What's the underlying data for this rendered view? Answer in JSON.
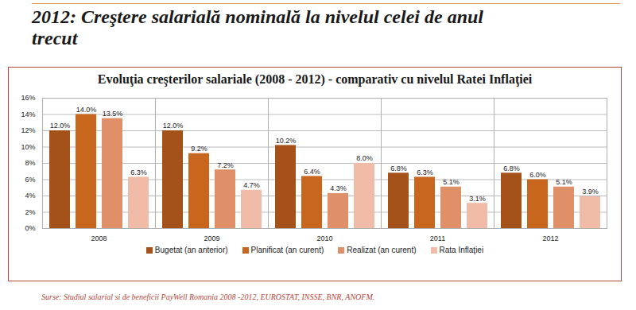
{
  "heading": "2012: Creştere salarială nominală la nivelul celei de anul trecut",
  "source": "Surse: Studiul salarial si de beneficii PayWell Romania 2008 -2012, EUROSTAT, INSSE, BNR, ANOFM.",
  "chart_data": {
    "type": "bar",
    "title": "Evoluţia creşterilor salariale (2008 - 2012) - comparativ cu nivelul Ratei Inflaţiei",
    "categories": [
      "2008",
      "2009",
      "2010",
      "2011",
      "2012"
    ],
    "series": [
      {
        "name": "Bugetat (an anterior)",
        "color": "#a5521a",
        "values": [
          12.0,
          12.0,
          10.2,
          6.8,
          6.8
        ],
        "value_labels": [
          "12.0%",
          "12.0%",
          "10.2%",
          "6.8%",
          "6.8%"
        ]
      },
      {
        "name": "Planificat (an curent)",
        "color": "#c8661e",
        "values": [
          14.0,
          9.2,
          6.4,
          6.3,
          6.0
        ],
        "value_labels": [
          "14.0%",
          "9.2%",
          "6.4%",
          "6.3%",
          "6.0%"
        ]
      },
      {
        "name": "Realizat (an curent)",
        "color": "#df9068",
        "values": [
          13.5,
          7.2,
          4.3,
          5.1,
          5.1
        ],
        "value_labels": [
          "13.5%",
          "7.2%",
          "4.3%",
          "5.1%",
          "5.1%"
        ]
      },
      {
        "name": "Rata Inflaţiei",
        "color": "#f0bca8",
        "values": [
          6.3,
          4.7,
          8.0,
          3.1,
          3.9
        ],
        "value_labels": [
          "6.3%",
          "4.7%",
          "8.0%",
          "3.1%",
          "3.9%"
        ]
      }
    ],
    "ylim": [
      0,
      16
    ],
    "yticks": [
      {
        "value": 0,
        "label": "0%"
      },
      {
        "value": 2,
        "label": "2%"
      },
      {
        "value": 4,
        "label": "4%"
      },
      {
        "value": 6,
        "label": "6%"
      },
      {
        "value": 8,
        "label": "8%"
      },
      {
        "value": 10,
        "label": "10%"
      },
      {
        "value": 12,
        "label": "12%"
      },
      {
        "value": 14,
        "label": "14%"
      },
      {
        "value": 16,
        "label": "16%"
      }
    ],
    "grid": true,
    "data_labels": true,
    "legend": "bottom"
  }
}
